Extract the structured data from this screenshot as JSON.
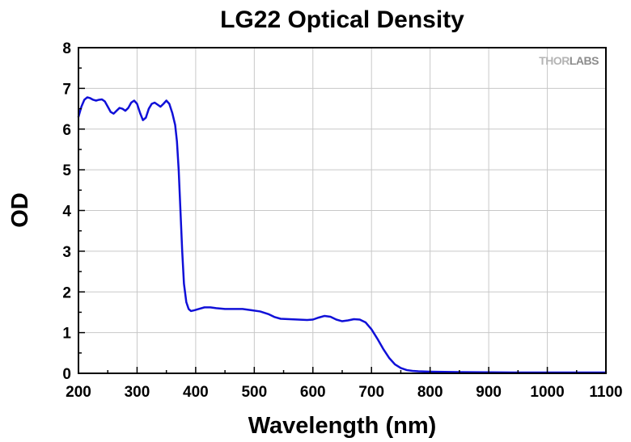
{
  "chart_data": {
    "type": "line",
    "title": "LG22 Optical Density",
    "xlabel": "Wavelength (nm)",
    "ylabel": "OD",
    "xlim": [
      200,
      1100
    ],
    "ylim": [
      0,
      8
    ],
    "x_ticks": [
      200,
      300,
      400,
      500,
      600,
      700,
      800,
      900,
      1000,
      1100
    ],
    "y_ticks": [
      0,
      1,
      2,
      3,
      4,
      5,
      6,
      7,
      8
    ],
    "grid": true,
    "watermark": {
      "brand_light": "THOR",
      "brand_dark": "LABS"
    },
    "series": [
      {
        "color": "#1010d8",
        "points": [
          [
            200,
            6.3
          ],
          [
            205,
            6.55
          ],
          [
            210,
            6.72
          ],
          [
            215,
            6.78
          ],
          [
            220,
            6.76
          ],
          [
            225,
            6.72
          ],
          [
            230,
            6.7
          ],
          [
            235,
            6.72
          ],
          [
            240,
            6.73
          ],
          [
            245,
            6.68
          ],
          [
            250,
            6.55
          ],
          [
            255,
            6.42
          ],
          [
            260,
            6.38
          ],
          [
            265,
            6.45
          ],
          [
            270,
            6.52
          ],
          [
            275,
            6.5
          ],
          [
            280,
            6.45
          ],
          [
            285,
            6.52
          ],
          [
            290,
            6.65
          ],
          [
            295,
            6.7
          ],
          [
            300,
            6.62
          ],
          [
            305,
            6.4
          ],
          [
            310,
            6.22
          ],
          [
            315,
            6.28
          ],
          [
            320,
            6.5
          ],
          [
            325,
            6.62
          ],
          [
            330,
            6.65
          ],
          [
            335,
            6.6
          ],
          [
            340,
            6.55
          ],
          [
            345,
            6.62
          ],
          [
            350,
            6.7
          ],
          [
            355,
            6.62
          ],
          [
            360,
            6.4
          ],
          [
            365,
            6.1
          ],
          [
            368,
            5.7
          ],
          [
            371,
            5.0
          ],
          [
            374,
            4.0
          ],
          [
            377,
            3.0
          ],
          [
            380,
            2.2
          ],
          [
            384,
            1.75
          ],
          [
            388,
            1.58
          ],
          [
            392,
            1.53
          ],
          [
            398,
            1.55
          ],
          [
            405,
            1.58
          ],
          [
            415,
            1.62
          ],
          [
            425,
            1.62
          ],
          [
            435,
            1.6
          ],
          [
            450,
            1.58
          ],
          [
            465,
            1.58
          ],
          [
            480,
            1.58
          ],
          [
            495,
            1.55
          ],
          [
            510,
            1.52
          ],
          [
            525,
            1.45
          ],
          [
            535,
            1.38
          ],
          [
            545,
            1.34
          ],
          [
            560,
            1.33
          ],
          [
            575,
            1.32
          ],
          [
            590,
            1.31
          ],
          [
            600,
            1.32
          ],
          [
            610,
            1.37
          ],
          [
            620,
            1.41
          ],
          [
            630,
            1.39
          ],
          [
            640,
            1.32
          ],
          [
            650,
            1.28
          ],
          [
            660,
            1.3
          ],
          [
            670,
            1.33
          ],
          [
            680,
            1.32
          ],
          [
            690,
            1.25
          ],
          [
            700,
            1.08
          ],
          [
            710,
            0.85
          ],
          [
            720,
            0.6
          ],
          [
            730,
            0.38
          ],
          [
            740,
            0.22
          ],
          [
            750,
            0.13
          ],
          [
            760,
            0.08
          ],
          [
            770,
            0.06
          ],
          [
            780,
            0.05
          ],
          [
            800,
            0.04
          ],
          [
            850,
            0.03
          ],
          [
            900,
            0.025
          ],
          [
            950,
            0.02
          ],
          [
            1000,
            0.02
          ],
          [
            1050,
            0.02
          ],
          [
            1100,
            0.02
          ]
        ]
      }
    ]
  }
}
